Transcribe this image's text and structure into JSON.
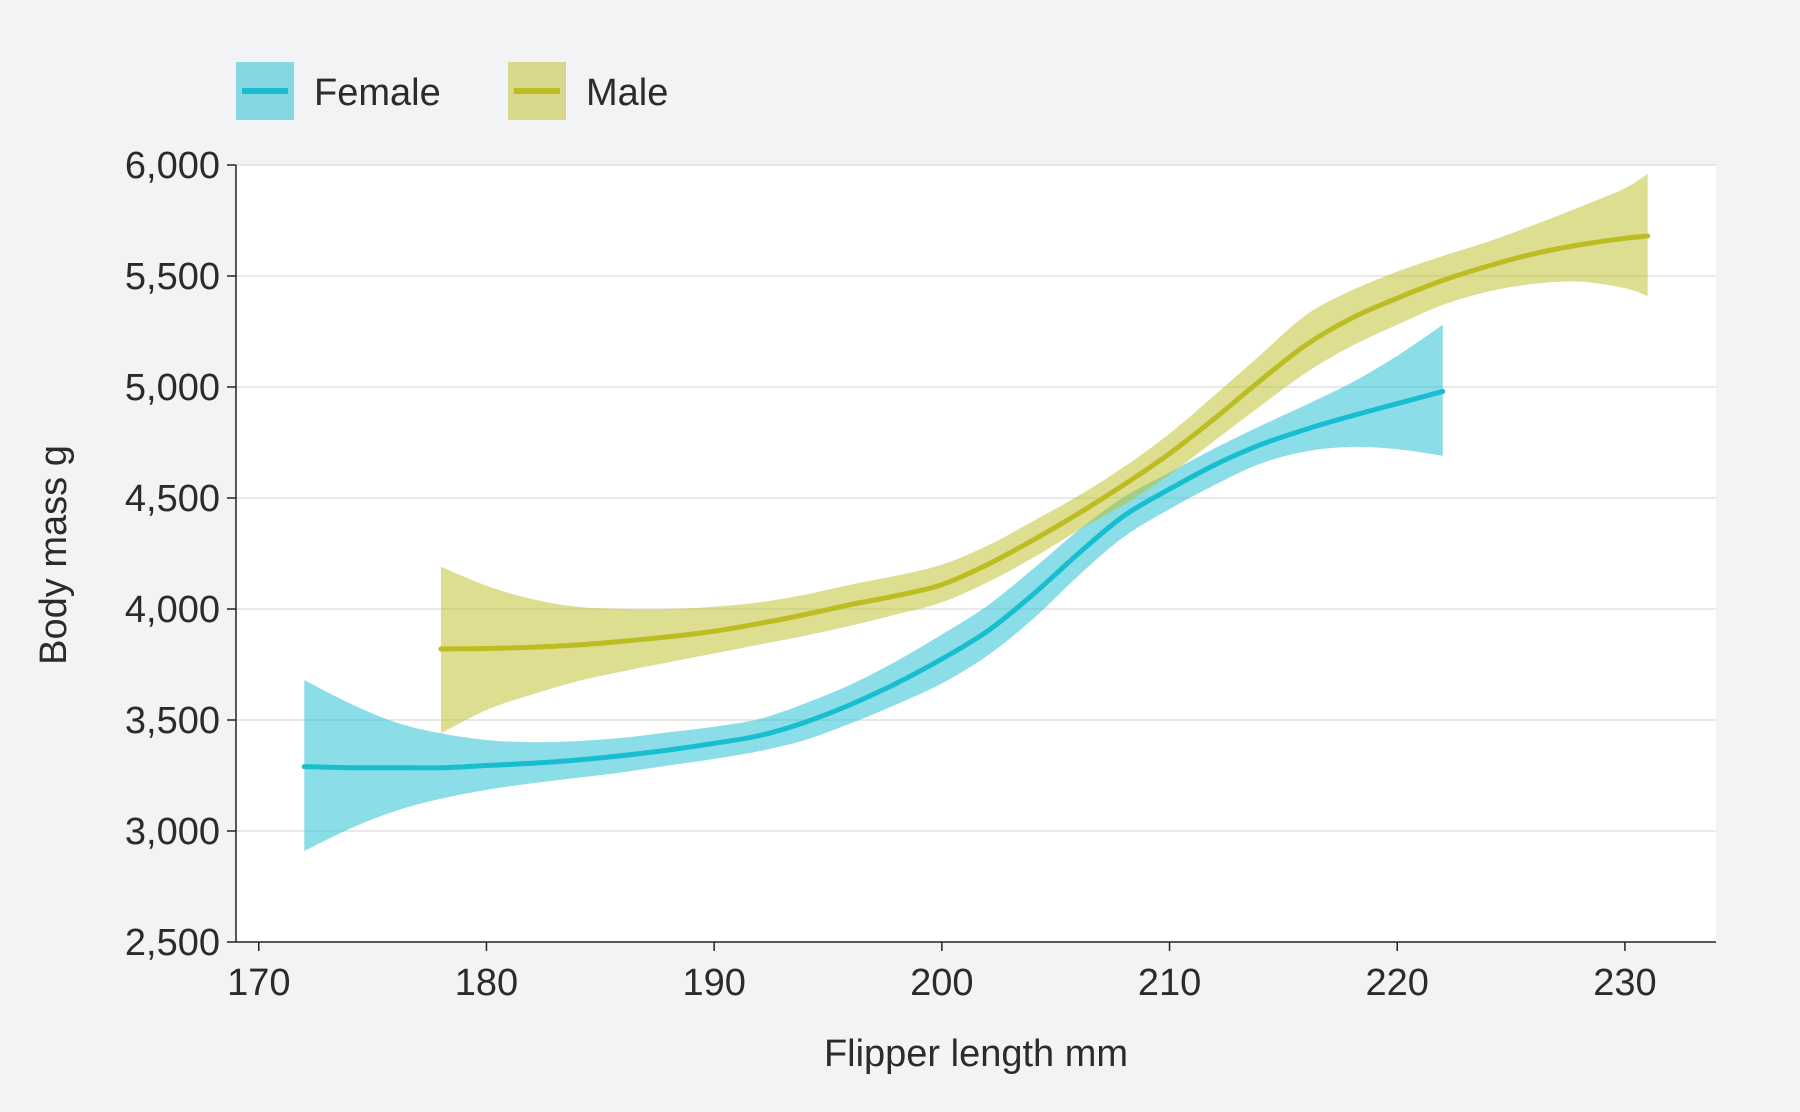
{
  "chart_data": {
    "type": "line",
    "title": "",
    "xlabel": "Flipper length mm",
    "ylabel": "Body mass g",
    "xlim": [
      169,
      234
    ],
    "ylim": [
      2500,
      6000
    ],
    "x_ticks": [
      170,
      180,
      190,
      200,
      210,
      220,
      230
    ],
    "y_ticks": [
      2500,
      3000,
      3500,
      4000,
      4500,
      5000,
      5500,
      6000
    ],
    "x_tick_labels": [
      "170",
      "180",
      "190",
      "200",
      "210",
      "220",
      "230"
    ],
    "y_tick_labels": [
      "2,500",
      "3,000",
      "3,500",
      "4,000",
      "4,500",
      "5,000",
      "5,500",
      "6,000"
    ],
    "grid": "horizontal",
    "legend_position": "top-left",
    "series": [
      {
        "name": "Female",
        "color": "#17becf",
        "x": [
          172,
          174,
          176,
          178,
          180,
          182,
          184,
          186,
          188,
          190,
          192,
          194,
          196,
          198,
          200,
          202,
          204,
          206,
          208,
          210,
          212,
          214,
          216,
          218,
          220,
          222
        ],
        "y": [
          3290,
          3285,
          3285,
          3285,
          3295,
          3305,
          3320,
          3340,
          3365,
          3395,
          3430,
          3490,
          3570,
          3665,
          3775,
          3900,
          4065,
          4250,
          4420,
          4540,
          4650,
          4740,
          4810,
          4870,
          4925,
          4980
        ],
        "lower": [
          2910,
          3010,
          3090,
          3145,
          3185,
          3215,
          3240,
          3265,
          3295,
          3325,
          3360,
          3410,
          3485,
          3570,
          3665,
          3790,
          3955,
          4150,
          4325,
          4450,
          4560,
          4655,
          4710,
          4730,
          4720,
          4690
        ],
        "upper": [
          3680,
          3575,
          3490,
          3440,
          3410,
          3400,
          3405,
          3420,
          3445,
          3470,
          3505,
          3575,
          3660,
          3765,
          3885,
          4015,
          4180,
          4355,
          4505,
          4615,
          4725,
          4825,
          4920,
          5020,
          5140,
          5280
        ]
      },
      {
        "name": "Male",
        "color": "#bcbd22",
        "x": [
          178,
          180,
          182,
          184,
          186,
          188,
          190,
          192,
          194,
          196,
          198,
          200,
          202,
          204,
          206,
          208,
          210,
          212,
          214,
          216,
          218,
          220,
          222,
          224,
          226,
          228,
          230,
          231
        ],
        "y": [
          3820,
          3822,
          3828,
          3838,
          3855,
          3875,
          3900,
          3935,
          3975,
          4020,
          4060,
          4110,
          4200,
          4310,
          4430,
          4560,
          4700,
          4860,
          5030,
          5190,
          5310,
          5400,
          5480,
          5545,
          5600,
          5640,
          5670,
          5680
        ],
        "lower": [
          3440,
          3545,
          3615,
          3675,
          3720,
          3760,
          3800,
          3840,
          3880,
          3925,
          3975,
          4030,
          4120,
          4230,
          4355,
          4470,
          4605,
          4760,
          4915,
          5065,
          5185,
          5280,
          5370,
          5430,
          5465,
          5475,
          5445,
          5410
        ],
        "upper": [
          4190,
          4105,
          4045,
          4010,
          4000,
          4000,
          4010,
          4030,
          4065,
          4110,
          4150,
          4200,
          4285,
          4395,
          4510,
          4640,
          4790,
          4965,
          5145,
          5325,
          5435,
          5520,
          5590,
          5655,
          5730,
          5810,
          5895,
          5960
        ]
      }
    ]
  }
}
